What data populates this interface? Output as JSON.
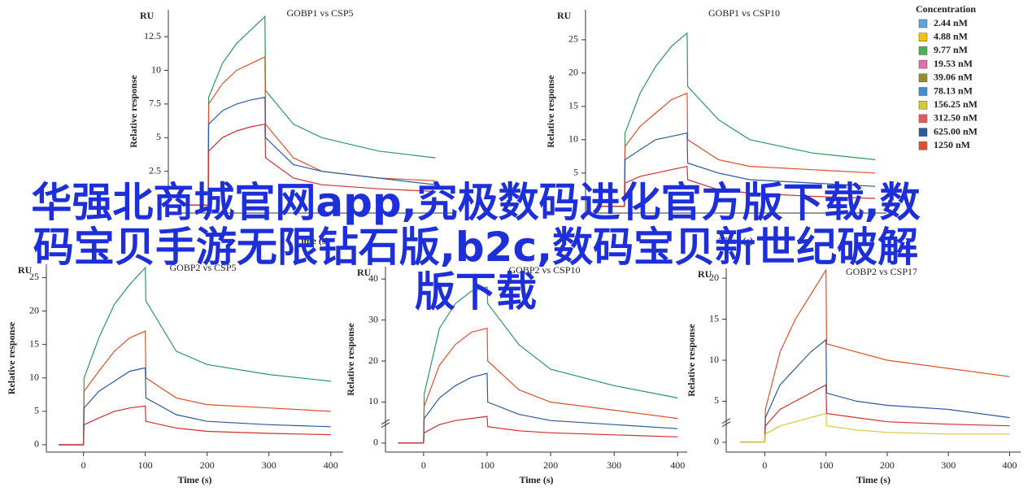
{
  "chart_data": [
    {
      "type": "line",
      "title": "GOBP1 vs CSP5",
      "ylabel": "Relative response",
      "yunit": "RU",
      "xlabel": "Time (s)",
      "x": [
        -40,
        0,
        1,
        25,
        50,
        75,
        100,
        101,
        150,
        200,
        300,
        400
      ],
      "series": [
        {
          "color": "#2a9a5a",
          "values": [
            0,
            0,
            8,
            10.5,
            12,
            13,
            14,
            8.5,
            6,
            5,
            4,
            3.5
          ]
        },
        {
          "color": "#e0502a",
          "values": [
            0,
            0,
            7.5,
            9,
            10,
            10.5,
            11,
            6,
            3.5,
            2.5,
            2,
            1.8
          ]
        },
        {
          "color": "#2a5aa0",
          "values": [
            0,
            0,
            6,
            7,
            7.5,
            7.8,
            8,
            5,
            3,
            2.5,
            2,
            1.5
          ]
        },
        {
          "color": "#d03030",
          "values": [
            0,
            0,
            4,
            5,
            5.5,
            5.8,
            6,
            3.5,
            2,
            1.5,
            1.2,
            1
          ]
        }
      ],
      "xlim": [
        -70,
        435
      ],
      "ylim": [
        -0.6,
        14.5
      ],
      "yticks": [
        2.5,
        5,
        7.5,
        10,
        12.5
      ]
    },
    {
      "type": "line",
      "title": "GOBP1 vs CSP10",
      "ylabel": "Relative response",
      "yunit": "RU",
      "xlabel": "Time (s)",
      "x": [
        -40,
        0,
        1,
        25,
        50,
        75,
        100,
        101,
        150,
        200,
        300,
        400
      ],
      "series": [
        {
          "color": "#2a9a5a",
          "values": [
            0,
            0,
            11,
            17,
            21,
            24,
            26,
            18,
            13,
            10,
            8,
            7
          ]
        },
        {
          "color": "#e0502a",
          "values": [
            0,
            0,
            9,
            12,
            14,
            16,
            17,
            10,
            7,
            6,
            5.5,
            5
          ]
        },
        {
          "color": "#2a5aa0",
          "values": [
            0,
            0,
            7,
            8.5,
            10,
            10.5,
            11,
            6.5,
            5,
            4,
            3.5,
            3
          ]
        },
        {
          "color": "#d03030",
          "values": [
            0,
            0,
            3.5,
            4.5,
            5,
            5.5,
            6,
            4,
            2.5,
            2,
            1.5,
            1.2
          ]
        }
      ],
      "xlim": [
        -62,
        418
      ],
      "ylim": [
        -1,
        29.5
      ],
      "yticks": [
        5,
        10,
        15,
        20,
        25
      ]
    },
    {
      "type": "line",
      "title": "GOBP2 vs CSP5",
      "ylabel": "Relative response",
      "yunit": "RU",
      "xlabel": "Time (s)",
      "x": [
        -40,
        0,
        1,
        25,
        50,
        75,
        100,
        101,
        150,
        200,
        300,
        400
      ],
      "series": [
        {
          "color": "#2a9a5a",
          "values": [
            0,
            0,
            10,
            16,
            21,
            24,
            26.5,
            21.5,
            14,
            12,
            10.5,
            9.5
          ]
        },
        {
          "color": "#e0502a",
          "values": [
            0,
            0,
            8,
            11,
            14,
            16,
            17,
            10,
            7,
            6,
            5.5,
            5
          ]
        },
        {
          "color": "#2a5aa0",
          "values": [
            0,
            0,
            5.5,
            8,
            9.5,
            11,
            11.5,
            7,
            4.5,
            3.5,
            3,
            2.7
          ]
        },
        {
          "color": "#d03030",
          "values": [
            0,
            0,
            3,
            4,
            5,
            5.5,
            5.8,
            3.5,
            2.5,
            2,
            1.7,
            1.5
          ]
        }
      ],
      "xlim": [
        -60,
        420
      ],
      "ylim": [
        -1.1,
        27
      ],
      "yticks": [
        0,
        5,
        10,
        15,
        20,
        25
      ],
      "xticks": [
        0,
        100,
        200,
        300,
        400
      ]
    },
    {
      "type": "line",
      "title": "GOBP2 vs CSP10",
      "ylabel": "Relative response",
      "yunit": "RU",
      "xlabel": "Time (s)",
      "axis_break": true,
      "x": [
        -40,
        0,
        1,
        25,
        50,
        75,
        100,
        101,
        150,
        200,
        300,
        400
      ],
      "series": [
        {
          "color": "#2a9a5a",
          "values": [
            0,
            0,
            12,
            28,
            34,
            37,
            38,
            34,
            24,
            18,
            14,
            11
          ]
        },
        {
          "color": "#e0502a",
          "values": [
            0,
            0,
            9,
            19,
            24,
            27,
            28,
            20,
            13,
            10,
            8,
            6
          ]
        },
        {
          "color": "#2a5aa0",
          "values": [
            0,
            0,
            6,
            11,
            14,
            16,
            17,
            10,
            7,
            5.5,
            4.5,
            3.5
          ]
        },
        {
          "color": "#d03030",
          "values": [
            0,
            0,
            2.5,
            4.5,
            5.5,
            6,
            6.5,
            4,
            3,
            2.5,
            2,
            1.5
          ]
        }
      ],
      "xlim": [
        -60,
        415
      ],
      "ylim": [
        -2.2,
        43
      ],
      "yticks": [
        0,
        10,
        20,
        30,
        40
      ],
      "xticks": [
        0,
        100,
        200,
        300,
        400
      ]
    },
    {
      "type": "line",
      "title": "GOBP2 vs CSP17",
      "ylabel": "Relative response",
      "yunit": "RU",
      "xlabel": "Time (s)",
      "axis_break": true,
      "x": [
        -40,
        0,
        1,
        25,
        50,
        75,
        100,
        101,
        150,
        200,
        300,
        400
      ],
      "series": [
        {
          "color": "#e0502a",
          "values": [
            0,
            0,
            4,
            11,
            15,
            18,
            21,
            12,
            11,
            10,
            9,
            8
          ]
        },
        {
          "color": "#2a5aa0",
          "values": [
            0,
            0,
            3,
            7,
            9,
            11,
            12.5,
            6,
            5,
            4.5,
            4,
            3
          ]
        },
        {
          "color": "#d03030",
          "values": [
            0,
            0,
            2,
            4,
            5,
            6,
            7,
            3.5,
            3,
            2.5,
            2.2,
            2
          ]
        },
        {
          "color": "#d6c93a",
          "values": [
            0,
            0,
            1,
            2,
            2.5,
            3,
            3.5,
            2,
            1.5,
            1.2,
            1,
            1
          ]
        }
      ],
      "xlim": [
        -63,
        418
      ],
      "ylim": [
        -1.2,
        21.2
      ],
      "yticks": [
        0,
        5,
        10,
        15,
        20
      ],
      "xticks": [
        0,
        100,
        200,
        300,
        400
      ]
    }
  ],
  "legend": {
    "title": "Concentration",
    "items": [
      {
        "label": "2.44 nM",
        "color": "#5ba3d9"
      },
      {
        "label": "4.88 nM",
        "color": "#f5c400"
      },
      {
        "label": "9.77 nM",
        "color": "#4caf50"
      },
      {
        "label": "19.53 nM",
        "color": "#e36cab"
      },
      {
        "label": "39.06 nM",
        "color": "#9a8a2a"
      },
      {
        "label": "78.13 nM",
        "color": "#3b8ed0"
      },
      {
        "label": "156.25 nM",
        "color": "#d6c93a"
      },
      {
        "label": "312.50 nM",
        "color": "#e85a5a"
      },
      {
        "label": "625.00 nM",
        "color": "#2a5aa0"
      },
      {
        "label": "1250 nM",
        "color": "#e0502a"
      }
    ]
  },
  "overlay_title": "华强北商城官网app,究极数码进化官方版下载,数码宝贝手游无限钻石版,b2c,数码宝贝新世纪破解版下载"
}
